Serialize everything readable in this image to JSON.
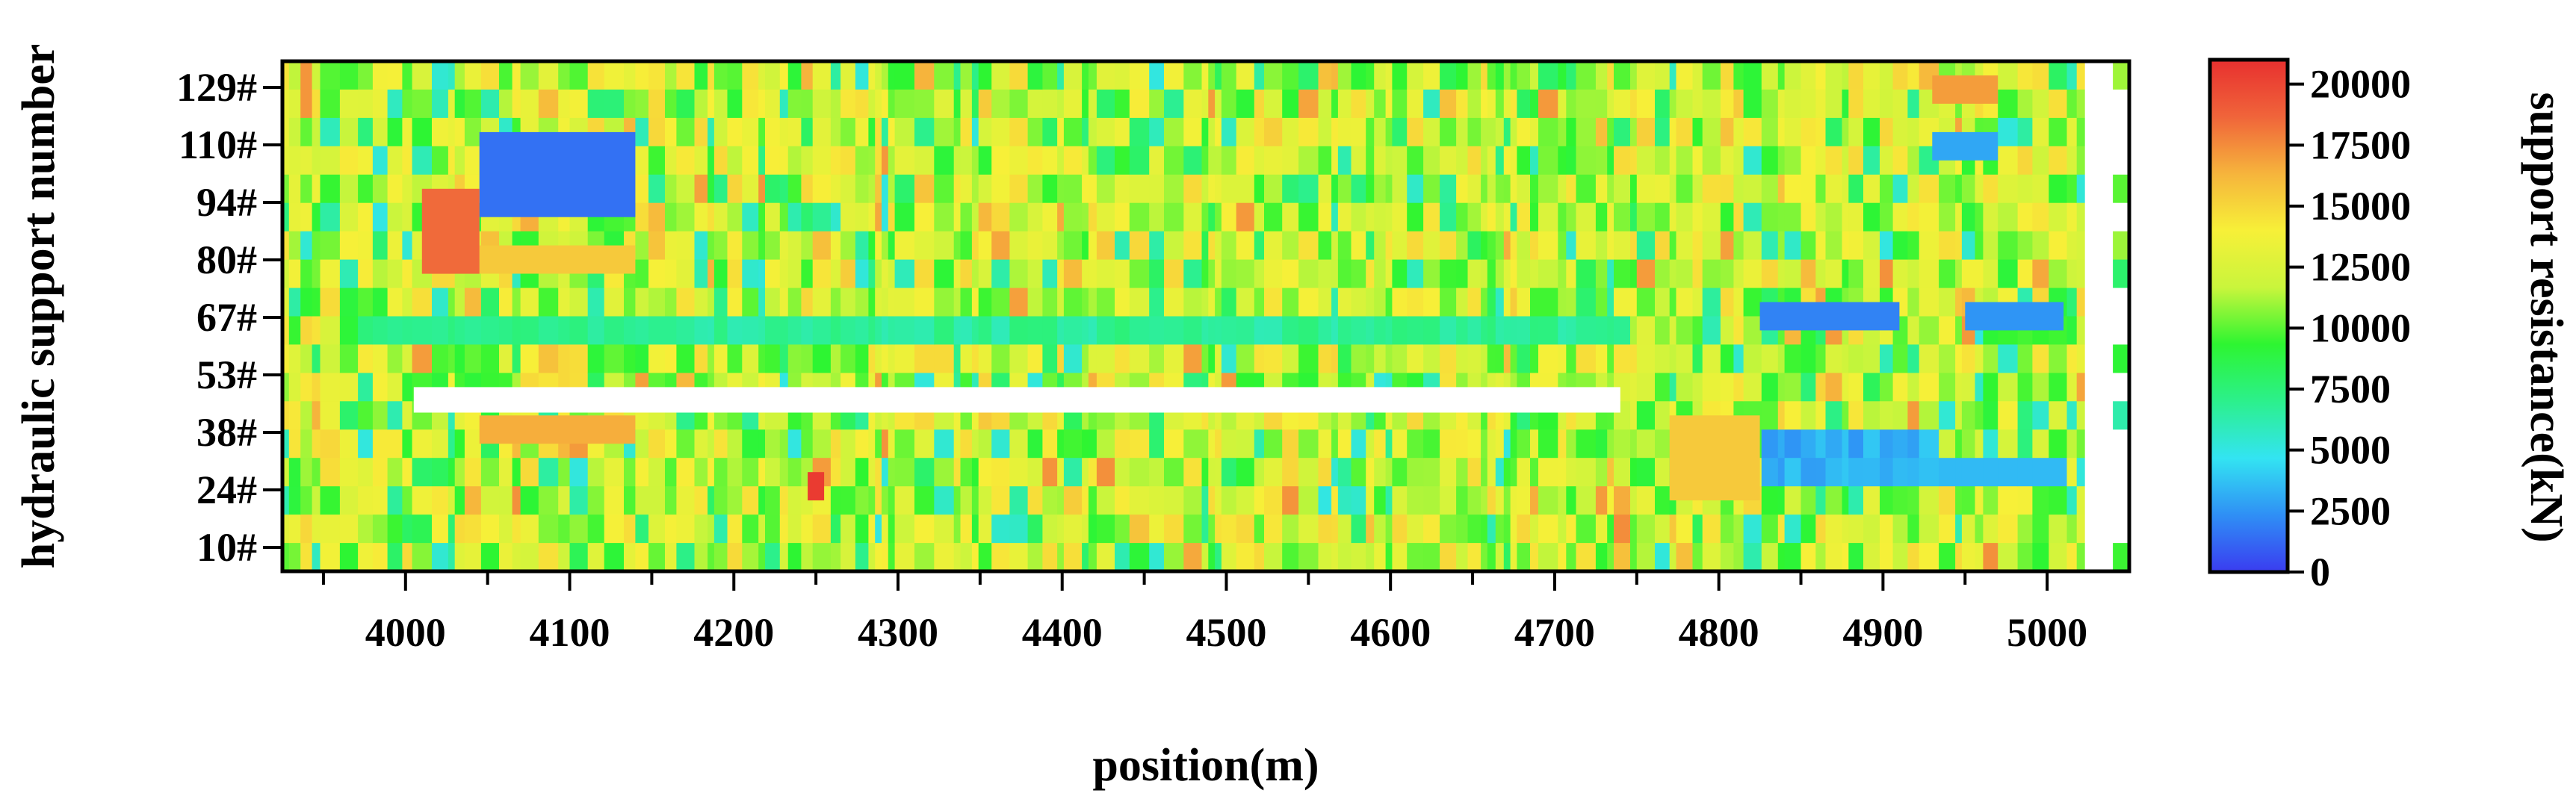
{
  "chart_data": {
    "type": "heatmap",
    "xlabel": "position(m)",
    "ylabel": "hydraulic support number",
    "colorbar_label": "support resistance(kN)",
    "xlim": [
      3925,
      5050
    ],
    "x_ticks": [
      4000,
      4100,
      4200,
      4300,
      4400,
      4500,
      4600,
      4700,
      4800,
      4900,
      5000
    ],
    "y_categories": [
      "10#",
      "24#",
      "38#",
      "53#",
      "67#",
      "80#",
      "94#",
      "110#",
      "129#"
    ],
    "colorbar_range": [
      0,
      21000
    ],
    "colorbar_ticks": [
      0,
      2500,
      5000,
      7500,
      10000,
      12500,
      15000,
      17500,
      20000
    ],
    "colormap": [
      "#3a3cf0",
      "#2f8ff5",
      "#33e4f2",
      "#2cf08c",
      "#2df531",
      "#c9f53c",
      "#f7f038",
      "#f6b43c",
      "#f0643a",
      "#e8302f"
    ],
    "grid": false,
    "description_of_values": "support resistance in kN per (position, support number) cell; white cells = no data",
    "bands": [
      {
        "from": 4045,
        "to": 4140,
        "support": "110#-94#",
        "value": 1500
      },
      {
        "from": 4045,
        "to": 4140,
        "support": "80#",
        "value": 15500
      },
      {
        "from": 4010,
        "to": 4045,
        "support": "80#-94#",
        "value": 18500
      },
      {
        "from": 4045,
        "to": 4140,
        "support": "38#",
        "value": 16500
      },
      {
        "from": 4825,
        "to": 4910,
        "support": "67#",
        "value": 2000
      },
      {
        "from": 4930,
        "to": 4970,
        "support": "129#",
        "value": 17000
      },
      {
        "from": 4770,
        "to": 4825,
        "support": "24#-38#",
        "value": 15500
      },
      {
        "from": 4245,
        "to": 4255,
        "support": "24#",
        "value": 20500
      },
      {
        "from": 4950,
        "to": 5010,
        "support": "67#",
        "value": 2500
      },
      {
        "from": 4930,
        "to": 4970,
        "support": "110#",
        "value": 3000
      }
    ]
  }
}
